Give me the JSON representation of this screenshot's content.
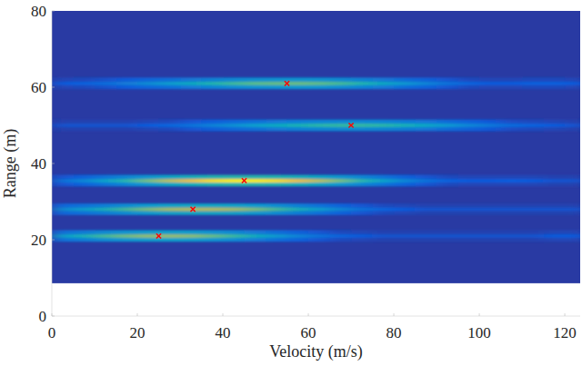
{
  "chart_data": {
    "type": "heatmap",
    "x_label": "Velocity (m/s)",
    "y_label": "Range (m)",
    "xlim": [
      0,
      123.6
    ],
    "ylim": [
      0,
      80
    ],
    "xticks": [
      0,
      20,
      40,
      60,
      80,
      100,
      120
    ],
    "yticks": [
      0,
      20,
      40,
      60,
      80
    ],
    "heatmap": {
      "x": [
        2.5,
        7.5,
        12.5,
        17.5,
        22.5,
        27.5,
        32.5,
        37.5,
        42.5,
        47.5,
        52.5,
        57.5,
        62.5,
        67.5,
        72.5,
        77.5,
        82.5,
        87.5,
        92.5,
        97.5,
        102.5,
        107.5,
        112.5,
        117.5,
        122.5
      ],
      "y": [
        20,
        21,
        22,
        27,
        28,
        29,
        34.5,
        35.5,
        36.5,
        49,
        50,
        51,
        60,
        61,
        62
      ],
      "range_step": 1,
      "background": 0.04,
      "extent_y": [
        8.6,
        80
      ],
      "zlim": [
        0,
        1
      ],
      "values": [
        [
          0.21,
          0.26,
          0.32,
          0.36,
          0.39,
          0.4,
          0.39,
          0.35,
          0.31,
          0.25,
          0.2,
          0.15,
          0.11,
          0.08,
          0.07,
          0.06,
          0.06,
          0.06,
          0.06,
          0.06,
          0.06,
          0.06,
          0.06,
          0.07,
          0.07
        ],
        [
          0.38,
          0.48,
          0.58,
          0.66,
          0.71,
          0.72,
          0.7,
          0.64,
          0.56,
          0.46,
          0.36,
          0.27,
          0.2,
          0.15,
          0.12,
          0.1,
          0.1,
          0.1,
          0.1,
          0.1,
          0.1,
          0.1,
          0.1,
          0.12,
          0.12
        ],
        [
          0.21,
          0.26,
          0.32,
          0.36,
          0.39,
          0.4,
          0.39,
          0.35,
          0.31,
          0.25,
          0.2,
          0.15,
          0.11,
          0.08,
          0.07,
          0.06,
          0.06,
          0.06,
          0.06,
          0.06,
          0.06,
          0.06,
          0.06,
          0.07,
          0.07
        ],
        [
          0.17,
          0.21,
          0.26,
          0.32,
          0.37,
          0.41,
          0.43,
          0.43,
          0.41,
          0.37,
          0.32,
          0.26,
          0.21,
          0.15,
          0.11,
          0.08,
          0.07,
          0.06,
          0.06,
          0.06,
          0.06,
          0.06,
          0.06,
          0.06,
          0.06
        ],
        [
          0.3,
          0.38,
          0.48,
          0.58,
          0.68,
          0.75,
          0.78,
          0.78,
          0.75,
          0.68,
          0.58,
          0.48,
          0.38,
          0.28,
          0.2,
          0.15,
          0.12,
          0.1,
          0.1,
          0.1,
          0.1,
          0.1,
          0.1,
          0.1,
          0.1
        ],
        [
          0.17,
          0.21,
          0.26,
          0.32,
          0.37,
          0.41,
          0.43,
          0.43,
          0.41,
          0.37,
          0.32,
          0.26,
          0.21,
          0.15,
          0.11,
          0.08,
          0.07,
          0.06,
          0.06,
          0.06,
          0.06,
          0.06,
          0.06,
          0.06,
          0.06
        ],
        [
          0.11,
          0.15,
          0.22,
          0.29,
          0.36,
          0.43,
          0.48,
          0.52,
          0.53,
          0.53,
          0.52,
          0.48,
          0.43,
          0.36,
          0.29,
          0.22,
          0.15,
          0.11,
          0.08,
          0.07,
          0.07,
          0.07,
          0.07,
          0.06,
          0.06
        ],
        [
          0.2,
          0.28,
          0.4,
          0.52,
          0.66,
          0.78,
          0.88,
          0.94,
          0.97,
          0.97,
          0.94,
          0.88,
          0.78,
          0.66,
          0.52,
          0.4,
          0.28,
          0.2,
          0.14,
          0.12,
          0.12,
          0.13,
          0.12,
          0.1,
          0.1
        ],
        [
          0.11,
          0.15,
          0.22,
          0.29,
          0.36,
          0.43,
          0.48,
          0.52,
          0.53,
          0.53,
          0.52,
          0.48,
          0.43,
          0.36,
          0.29,
          0.22,
          0.15,
          0.11,
          0.08,
          0.07,
          0.07,
          0.07,
          0.07,
          0.06,
          0.06
        ],
        [
          0.06,
          0.06,
          0.06,
          0.06,
          0.07,
          0.08,
          0.11,
          0.14,
          0.18,
          0.21,
          0.24,
          0.27,
          0.29,
          0.3,
          0.3,
          0.29,
          0.26,
          0.23,
          0.19,
          0.15,
          0.12,
          0.09,
          0.08,
          0.07,
          0.06
        ],
        [
          0.1,
          0.1,
          0.1,
          0.1,
          0.12,
          0.15,
          0.2,
          0.26,
          0.32,
          0.38,
          0.44,
          0.49,
          0.53,
          0.55,
          0.55,
          0.53,
          0.48,
          0.42,
          0.35,
          0.28,
          0.22,
          0.17,
          0.14,
          0.12,
          0.1
        ],
        [
          0.06,
          0.06,
          0.06,
          0.06,
          0.07,
          0.08,
          0.11,
          0.14,
          0.18,
          0.21,
          0.24,
          0.27,
          0.29,
          0.3,
          0.3,
          0.29,
          0.26,
          0.23,
          0.19,
          0.15,
          0.12,
          0.09,
          0.08,
          0.07,
          0.06
        ],
        [
          0.07,
          0.08,
          0.1,
          0.13,
          0.17,
          0.2,
          0.24,
          0.28,
          0.31,
          0.34,
          0.35,
          0.36,
          0.35,
          0.32,
          0.28,
          0.24,
          0.19,
          0.15,
          0.11,
          0.08,
          0.07,
          0.07,
          0.08,
          0.08,
          0.07
        ],
        [
          0.12,
          0.14,
          0.18,
          0.24,
          0.3,
          0.37,
          0.44,
          0.51,
          0.57,
          0.62,
          0.64,
          0.65,
          0.63,
          0.58,
          0.51,
          0.43,
          0.35,
          0.27,
          0.2,
          0.15,
          0.12,
          0.12,
          0.14,
          0.14,
          0.12
        ],
        [
          0.07,
          0.08,
          0.1,
          0.13,
          0.17,
          0.2,
          0.24,
          0.28,
          0.31,
          0.34,
          0.35,
          0.36,
          0.35,
          0.32,
          0.28,
          0.24,
          0.19,
          0.15,
          0.11,
          0.08,
          0.07,
          0.07,
          0.08,
          0.08,
          0.07
        ]
      ]
    },
    "targets": {
      "x": [
        55,
        70,
        45,
        33,
        25
      ],
      "y": [
        61,
        50,
        35.5,
        28,
        21
      ],
      "color": "#ff0000",
      "marker": "x"
    }
  }
}
